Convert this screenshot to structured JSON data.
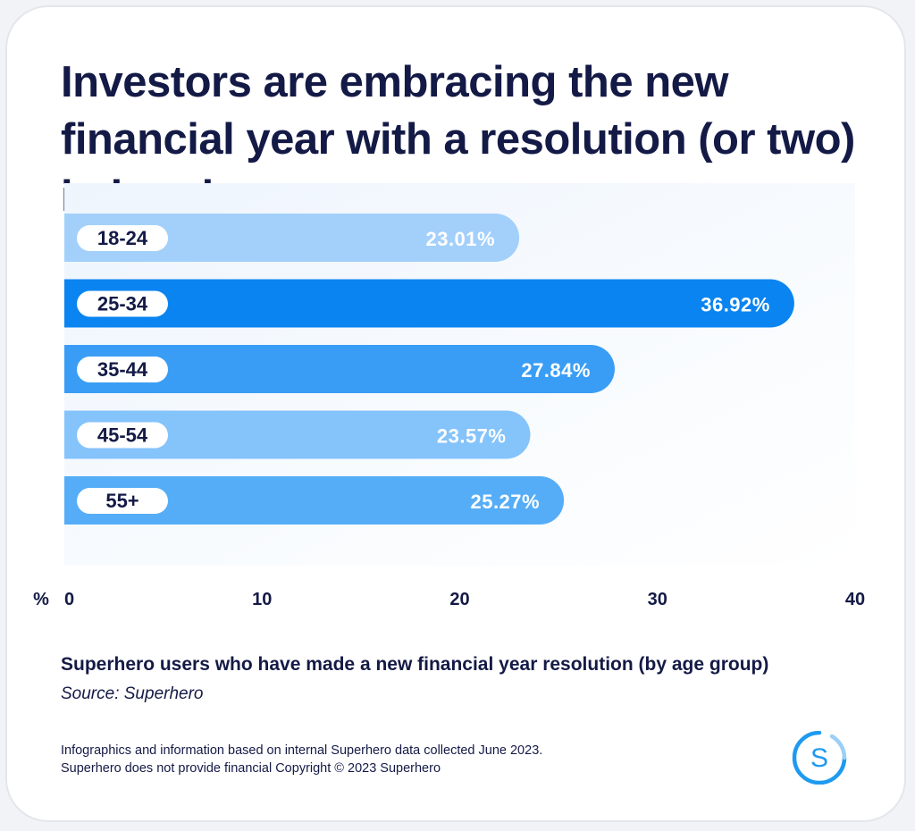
{
  "header": {
    "title": "Investors are embracing the new financial year with a resolution (or two) in hand."
  },
  "chart_data": {
    "type": "bar",
    "orientation": "horizontal",
    "categories": [
      "18-24",
      "25-34",
      "35-44",
      "45-54",
      "55+"
    ],
    "values": [
      23.01,
      36.92,
      27.84,
      23.57,
      25.27
    ],
    "value_labels": [
      "23.01%",
      "36.92%",
      "27.84%",
      "23.57%",
      "25.27%"
    ],
    "bar_colors": [
      "#a3d0fb",
      "#0a84f0",
      "#3a9df5",
      "#85c3fb",
      "#55adf7"
    ],
    "xlim": [
      0,
      40
    ],
    "xticks": [
      "0",
      "10",
      "20",
      "30",
      "40"
    ],
    "xunit": "%",
    "title": "",
    "xlabel": "",
    "ylabel": ""
  },
  "caption": {
    "description": "Superhero users who have made a new financial year resolution (by age group)",
    "source": "Source: Superhero"
  },
  "footer": {
    "line1": "Infographics and information based on internal Superhero data collected June 2023.",
    "line2": "Superhero does not provide financial Copyright © 2023 Superhero"
  },
  "logo": {
    "letter": "S",
    "color": "#1e9af0"
  }
}
